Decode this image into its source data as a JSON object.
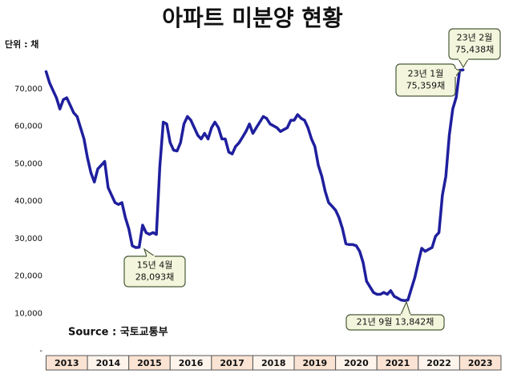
{
  "chart_data": {
    "type": "line",
    "title": "아파트 미분양 현황",
    "unit_label": "단위 : 채",
    "source": "Source :  국토교통부",
    "categories": [
      "2013",
      "2014",
      "2015",
      "2016",
      "2017",
      "2018",
      "2019",
      "2020",
      "2021",
      "2022",
      "2023"
    ],
    "xlim": [
      2013,
      2024
    ],
    "x": [
      2013,
      2013.083,
      2013.167,
      2013.25,
      2013.333,
      2013.417,
      2013.5,
      2013.583,
      2013.667,
      2013.75,
      2013.833,
      2013.917,
      2014,
      2014.083,
      2014.167,
      2014.25,
      2014.333,
      2014.417,
      2014.5,
      2014.583,
      2014.667,
      2014.75,
      2014.833,
      2014.917,
      2015,
      2015.083,
      2015.167,
      2015.25,
      2015.333,
      2015.417,
      2015.5,
      2015.583,
      2015.667,
      2015.75,
      2015.833,
      2015.917,
      2016,
      2016.083,
      2016.167,
      2016.25,
      2016.333,
      2016.417,
      2016.5,
      2016.583,
      2016.667,
      2016.75,
      2016.833,
      2016.917,
      2017,
      2017.083,
      2017.167,
      2017.25,
      2017.333,
      2017.417,
      2017.5,
      2017.583,
      2017.667,
      2017.75,
      2017.833,
      2017.917,
      2018,
      2018.083,
      2018.167,
      2018.25,
      2018.333,
      2018.417,
      2018.5,
      2018.583,
      2018.667,
      2018.75,
      2018.833,
      2018.917,
      2019,
      2019.083,
      2019.167,
      2019.25,
      2019.333,
      2019.417,
      2019.5,
      2019.583,
      2019.667,
      2019.75,
      2019.833,
      2019.917,
      2020,
      2020.083,
      2020.167,
      2020.25,
      2020.333,
      2020.417,
      2020.5,
      2020.583,
      2020.667,
      2020.75,
      2020.833,
      2020.917,
      2021,
      2021.083,
      2021.167,
      2021.25,
      2021.333,
      2021.417,
      2021.5,
      2021.583,
      2021.667,
      2021.75,
      2021.833,
      2021.917,
      2022,
      2022.083,
      2022.167,
      2022.25,
      2022.333,
      2022.417,
      2022.5,
      2022.583,
      2022.667,
      2022.75,
      2022.833,
      2022.917,
      2023,
      2023.083
    ],
    "series": [
      {
        "name": "미분양",
        "color": "#1f1f9e",
        "values": [
          75000,
          72000,
          70000,
          68000,
          65000,
          67500,
          68000,
          66000,
          64000,
          63000,
          60000,
          57000,
          52000,
          48000,
          45500,
          49000,
          50000,
          51000,
          44000,
          42000,
          40000,
          39500,
          40000,
          36000,
          33000,
          28500,
          28000,
          28093,
          34000,
          32000,
          31500,
          32000,
          31500,
          49700,
          61500,
          61000,
          56000,
          54000,
          53800,
          56000,
          61000,
          63000,
          62000,
          60000,
          58000,
          57000,
          58500,
          57000,
          60000,
          61500,
          60000,
          57000,
          57000,
          53500,
          53000,
          55000,
          56000,
          57500,
          59000,
          61000,
          58500,
          60000,
          61500,
          63000,
          62500,
          61000,
          60500,
          60000,
          59000,
          59500,
          60000,
          62000,
          62000,
          63500,
          62500,
          62000,
          60000,
          57000,
          55000,
          50000,
          47000,
          43000,
          40000,
          39000,
          38000,
          36000,
          33000,
          29000,
          28800,
          28800,
          28500,
          27000,
          24000,
          19000,
          17500,
          16000,
          15500,
          15500,
          16000,
          15500,
          16500,
          15000,
          14500,
          14000,
          13842,
          14000,
          17000,
          20000,
          24000,
          27800,
          27000,
          27500,
          28000,
          31000,
          32000,
          42000,
          47000,
          58000,
          65000,
          68107,
          75359,
          75438
        ]
      }
    ],
    "ylim": [
      0,
      80000
    ],
    "yticks": [
      {
        "value": 0,
        "label": "-"
      },
      {
        "value": 10000,
        "label": "10,000"
      },
      {
        "value": 20000,
        "label": "20,000"
      },
      {
        "value": 30000,
        "label": "30,000"
      },
      {
        "value": 40000,
        "label": "40,000"
      },
      {
        "value": 50000,
        "label": "50,000"
      },
      {
        "value": 60000,
        "label": "60,000"
      },
      {
        "value": 70000,
        "label": "70,000"
      }
    ],
    "grid": false,
    "annotations": [
      {
        "lines": [
          "15년 4월",
          "28,093채"
        ]
      },
      {
        "lines": [
          "21년 9월 13,842채"
        ]
      },
      {
        "lines": [
          "23년 1월",
          "75,359채"
        ]
      },
      {
        "lines": [
          "23년 2월",
          "75,438채"
        ]
      }
    ]
  }
}
